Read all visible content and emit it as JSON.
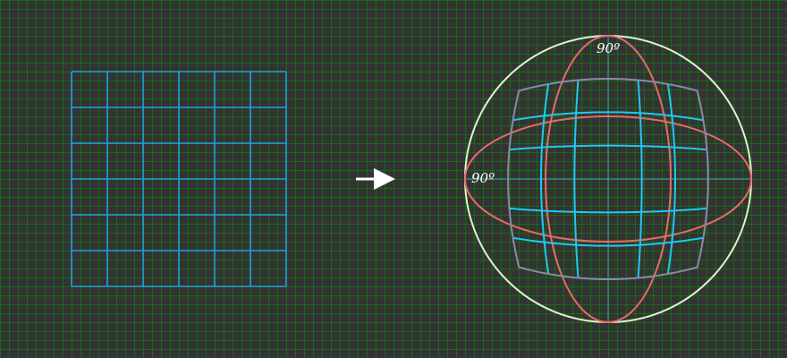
{
  "labels": {
    "vertical_fov": "90º",
    "horizontal_fov": "90º"
  },
  "colors": {
    "background": "#333333",
    "background_grid": "#008c00",
    "source_grid": "#1ea0d6",
    "warped_grid": "#22c8f0",
    "warped_outline": "#8a8aa6",
    "vertical_ellipse": "#e86a6a",
    "bounding_circle": "#d8f5c8",
    "center_axes": "#3aa6a6",
    "arrow": "#ffffff"
  },
  "source_grid": {
    "rows": 6,
    "columns": 6
  },
  "warped_grid": {
    "rows": 6,
    "columns": 6
  }
}
